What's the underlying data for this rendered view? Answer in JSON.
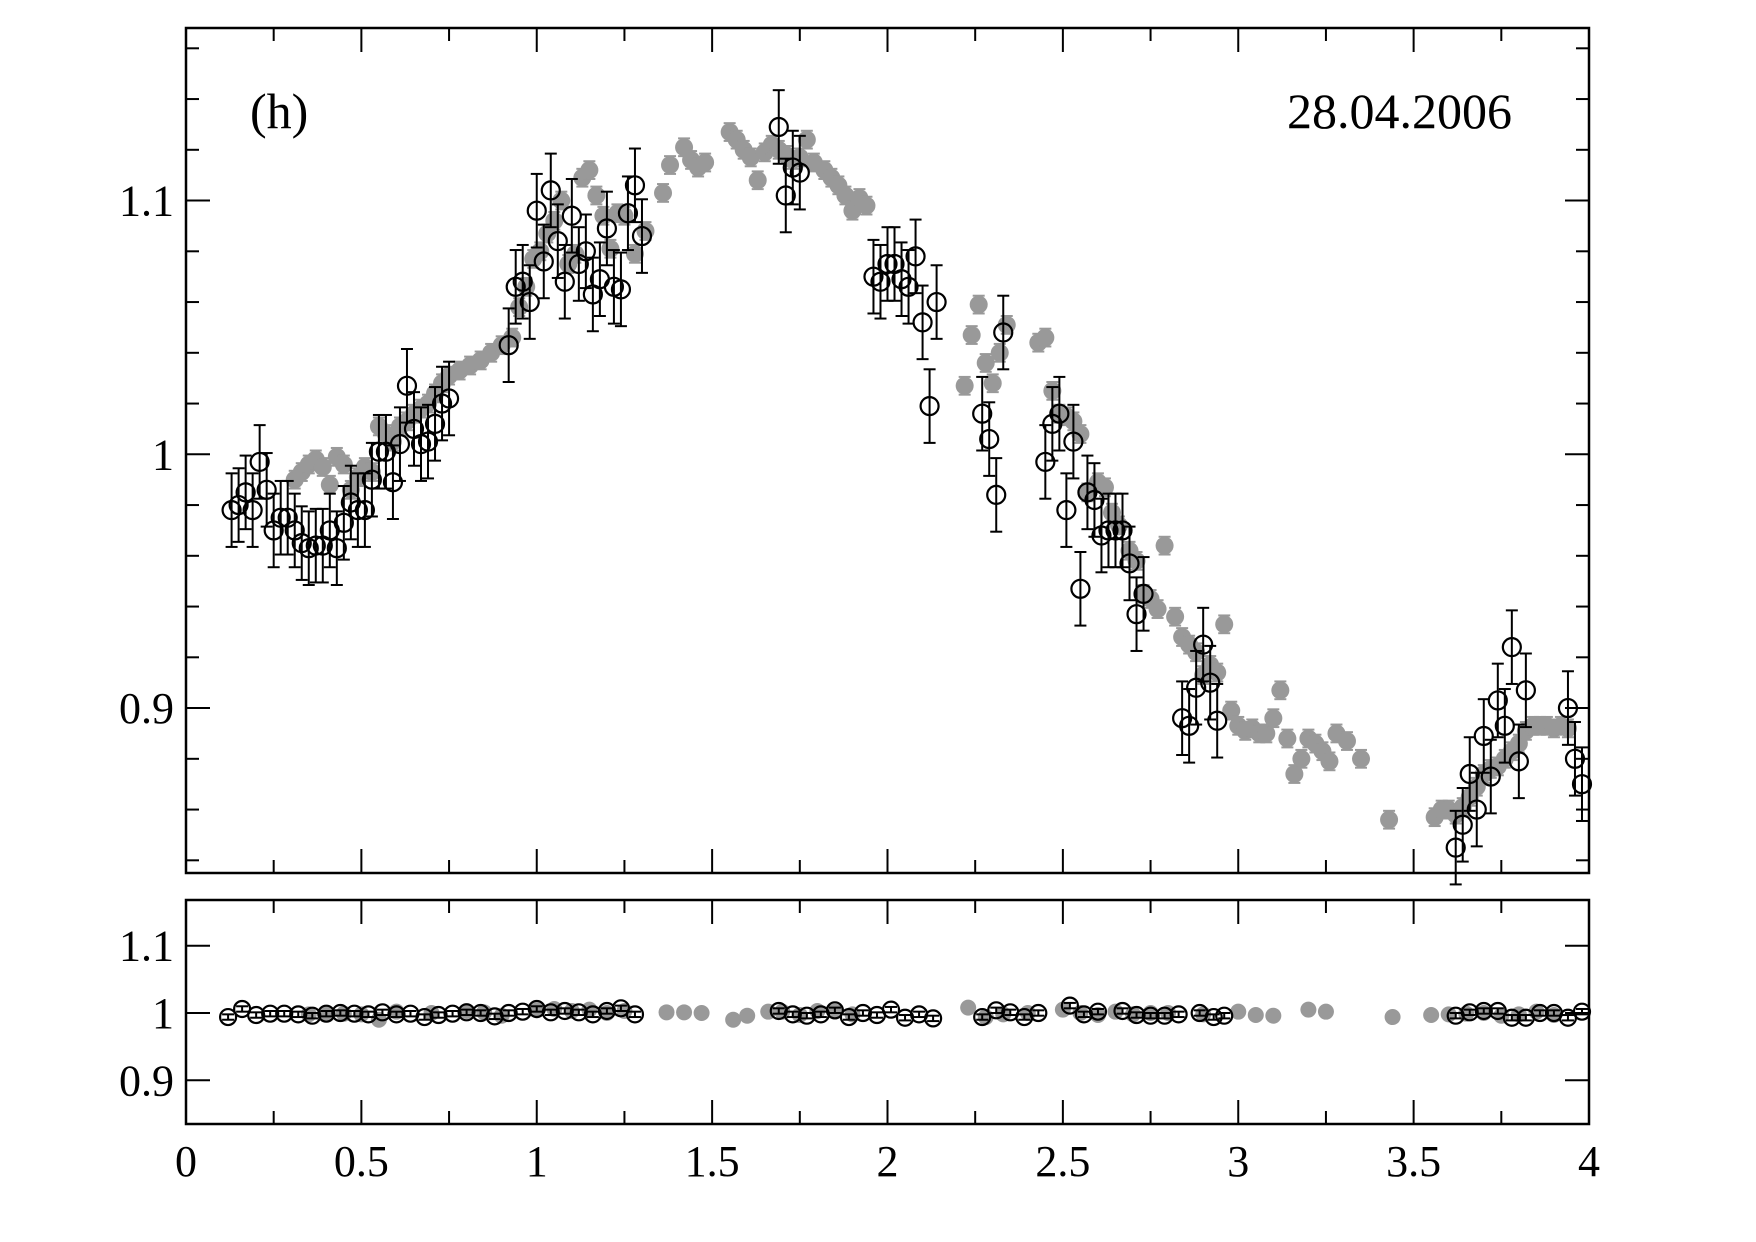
{
  "chart_data": [
    {
      "type": "scatter",
      "panel_label": "(h)",
      "date": "28.04.2006",
      "xlabel": "",
      "ylabel": "",
      "xlim": [
        0,
        4
      ],
      "ylim": [
        0.835,
        1.168
      ],
      "xticks": [
        0,
        0.5,
        1,
        1.5,
        2,
        2.5,
        3,
        3.5,
        4
      ],
      "yticks": [
        0.9,
        1,
        1.1
      ],
      "ytick_labels": [
        "0.9",
        "1",
        "1.1"
      ],
      "grid": false,
      "series": [
        {
          "style": "filled-gray-circles",
          "color": "#999999",
          "x": [
            0.31,
            0.33,
            0.35,
            0.37,
            0.39,
            0.41,
            0.43,
            0.45,
            0.47,
            0.49,
            0.51,
            0.53,
            0.55,
            0.57,
            0.59,
            0.61,
            0.63,
            0.65,
            0.67,
            0.69,
            0.71,
            0.73,
            0.75,
            0.78,
            0.81,
            0.84,
            0.87,
            0.9,
            0.93,
            0.95,
            0.97,
            0.99,
            1.01,
            1.03,
            1.05,
            1.07,
            1.09,
            1.11,
            1.13,
            1.15,
            1.17,
            1.19,
            1.21,
            1.23,
            1.25,
            1.28,
            1.31,
            1.36,
            1.38,
            1.42,
            1.44,
            1.46,
            1.48,
            1.55,
            1.57,
            1.59,
            1.61,
            1.63,
            1.65,
            1.67,
            1.69,
            1.71,
            1.73,
            1.75,
            1.77,
            1.79,
            1.82,
            1.84,
            1.86,
            1.88,
            1.9,
            1.92,
            1.94,
            2.22,
            2.24,
            2.26,
            2.28,
            2.3,
            2.32,
            2.34,
            2.43,
            2.45,
            2.47,
            2.49,
            2.51,
            2.53,
            2.55,
            2.57,
            2.6,
            2.62,
            2.64,
            2.66,
            2.69,
            2.71,
            2.73,
            2.75,
            2.77,
            2.79,
            2.82,
            2.84,
            2.86,
            2.88,
            2.9,
            2.92,
            2.94,
            2.96,
            2.98,
            3.0,
            3.02,
            3.04,
            3.06,
            3.08,
            3.1,
            3.12,
            3.14,
            3.16,
            3.18,
            3.2,
            3.22,
            3.24,
            3.26,
            3.28,
            3.31,
            3.35,
            3.43,
            3.56,
            3.58,
            3.6,
            3.62,
            3.64,
            3.66,
            3.68,
            3.7,
            3.72,
            3.74,
            3.76,
            3.78,
            3.8,
            3.82,
            3.84,
            3.86,
            3.88,
            3.9,
            3.92,
            3.94
          ],
          "y": [
            0.99,
            0.993,
            0.996,
            0.998,
            0.995,
            0.988,
            0.999,
            0.996,
            0.986,
            0.991,
            0.995,
            0.993,
            1.011,
            1.008,
            1.005,
            1.011,
            1.013,
            1.016,
            1.018,
            1.02,
            1.024,
            1.028,
            1.031,
            1.033,
            1.035,
            1.037,
            1.04,
            1.043,
            1.046,
            1.058,
            1.066,
            1.077,
            1.08,
            1.087,
            1.092,
            1.1,
            1.075,
            1.079,
            1.109,
            1.112,
            1.102,
            1.094,
            1.081,
            1.095,
            1.094,
            1.079,
            1.088,
            1.103,
            1.114,
            1.121,
            1.116,
            1.113,
            1.115,
            1.127,
            1.124,
            1.12,
            1.117,
            1.108,
            1.119,
            1.122,
            1.12,
            1.118,
            1.116,
            1.117,
            1.124,
            1.115,
            1.112,
            1.109,
            1.106,
            1.102,
            1.096,
            1.101,
            1.098,
            1.027,
            1.047,
            1.059,
            1.036,
            1.028,
            1.04,
            1.051,
            1.044,
            1.046,
            1.025,
            1.016,
            1.015,
            1.013,
            1.008,
            0.985,
            0.989,
            0.987,
            0.977,
            0.972,
            0.962,
            0.958,
            0.945,
            0.943,
            0.939,
            0.964,
            0.936,
            0.928,
            0.925,
            0.922,
            0.913,
            0.917,
            0.914,
            0.933,
            0.899,
            0.893,
            0.891,
            0.892,
            0.89,
            0.89,
            0.896,
            0.907,
            0.888,
            0.874,
            0.88,
            0.888,
            0.886,
            0.883,
            0.879,
            0.89,
            0.887,
            0.88,
            0.856,
            0.857,
            0.86,
            0.86,
            0.858,
            0.861,
            0.865,
            0.869,
            0.874,
            0.876,
            0.877,
            0.88,
            0.883,
            0.886,
            0.891,
            0.893,
            0.893,
            0.893,
            0.892,
            0.893,
            0.892
          ]
        },
        {
          "style": "open-black-circles",
          "color": "#000000",
          "x": [
            0.13,
            0.15,
            0.17,
            0.19,
            0.21,
            0.23,
            0.25,
            0.27,
            0.29,
            0.31,
            0.33,
            0.35,
            0.37,
            0.39,
            0.41,
            0.43,
            0.45,
            0.47,
            0.49,
            0.51,
            0.53,
            0.55,
            0.57,
            0.59,
            0.61,
            0.63,
            0.65,
            0.67,
            0.69,
            0.71,
            0.73,
            0.75,
            0.92,
            0.94,
            0.96,
            0.98,
            1.0,
            1.02,
            1.04,
            1.06,
            1.08,
            1.1,
            1.12,
            1.14,
            1.16,
            1.18,
            1.2,
            1.22,
            1.24,
            1.26,
            1.28,
            1.3,
            1.69,
            1.71,
            1.73,
            1.75,
            1.96,
            1.98,
            2.0,
            2.02,
            2.04,
            2.06,
            2.08,
            2.1,
            2.12,
            2.14,
            2.27,
            2.29,
            2.31,
            2.33,
            2.45,
            2.47,
            2.49,
            2.51,
            2.53,
            2.55,
            2.57,
            2.59,
            2.61,
            2.63,
            2.65,
            2.67,
            2.69,
            2.71,
            2.73,
            2.84,
            2.86,
            2.88,
            2.9,
            2.92,
            2.94,
            3.62,
            3.64,
            3.66,
            3.68,
            3.7,
            3.72,
            3.74,
            3.76,
            3.78,
            3.8,
            3.82,
            3.94,
            3.96,
            3.98
          ],
          "y": [
            0.978,
            0.98,
            0.985,
            0.978,
            0.997,
            0.986,
            0.97,
            0.975,
            0.975,
            0.97,
            0.965,
            0.963,
            0.964,
            0.964,
            0.97,
            0.963,
            0.973,
            0.981,
            0.978,
            0.978,
            0.99,
            1.001,
            1.001,
            0.989,
            1.004,
            1.027,
            1.01,
            1.004,
            1.005,
            1.012,
            1.02,
            1.022,
            1.043,
            1.066,
            1.068,
            1.06,
            1.096,
            1.076,
            1.104,
            1.084,
            1.068,
            1.094,
            1.075,
            1.08,
            1.063,
            1.069,
            1.089,
            1.066,
            1.065,
            1.095,
            1.106,
            1.086,
            1.129,
            1.102,
            1.113,
            1.111,
            1.07,
            1.068,
            1.075,
            1.075,
            1.069,
            1.066,
            1.078,
            1.052,
            1.019,
            1.06,
            1.016,
            1.006,
            0.984,
            1.048,
            0.997,
            1.012,
            1.016,
            0.978,
            1.005,
            0.947,
            0.985,
            0.982,
            0.968,
            0.97,
            0.97,
            0.97,
            0.957,
            0.937,
            0.945,
            0.896,
            0.893,
            0.908,
            0.925,
            0.91,
            0.895,
            0.845,
            0.854,
            0.874,
            0.86,
            0.889,
            0.873,
            0.903,
            0.893,
            0.924,
            0.879,
            0.907,
            0.9,
            0.88,
            0.87
          ]
        }
      ]
    },
    {
      "type": "scatter",
      "xlim": [
        0,
        4
      ],
      "ylim": [
        0.835,
        1.168
      ],
      "xticks": [
        0,
        0.5,
        1,
        1.5,
        2,
        2.5,
        3,
        3.5,
        4
      ],
      "xtick_labels": [
        "0",
        "0.5",
        "1",
        "1.5",
        "2",
        "2.5",
        "3",
        "3.5",
        "4"
      ],
      "yticks": [
        0.9,
        1,
        1.1
      ],
      "ytick_labels": [
        "0.9",
        "1",
        "1.1"
      ],
      "grid": false,
      "series": [
        {
          "style": "filled-gray-circles",
          "color": "#999999",
          "x": [
            0.35,
            0.4,
            0.45,
            0.5,
            0.55,
            0.6,
            0.7,
            0.8,
            0.85,
            0.9,
            1.0,
            1.05,
            1.1,
            1.15,
            1.2,
            1.25,
            1.37,
            1.42,
            1.47,
            1.56,
            1.6,
            1.66,
            1.7,
            1.75,
            1.8,
            1.85,
            1.9,
            2.23,
            2.28,
            2.33,
            2.4,
            2.5,
            2.55,
            2.6,
            2.65,
            2.7,
            2.75,
            2.8,
            2.9,
            3.0,
            3.05,
            3.1,
            3.2,
            3.25,
            3.44,
            3.55,
            3.6,
            3.65,
            3.7,
            3.75,
            3.8,
            3.85,
            3.9
          ],
          "y": [
            0.998,
            1.0,
            0.999,
            0.998,
            0.99,
            1.002,
            1.0,
            1.003,
            1.001,
            0.996,
            1.004,
            1.006,
            1.003,
            1.005,
            1.0,
            1.003,
            1.001,
            1.001,
            1.0,
            0.99,
            0.996,
            1.002,
            1.002,
            0.997,
            1.003,
            1.002,
            0.998,
            1.008,
            0.994,
            0.998,
            1.0,
            1.005,
            1.0,
            0.997,
            1.002,
            0.998,
            1.0,
            1.0,
            0.998,
            1.002,
            0.997,
            0.996,
            1.005,
            1.002,
            0.994,
            0.997,
            0.998,
            0.999,
            1.0,
            0.996,
            0.998,
            1.002,
            0.997
          ]
        },
        {
          "style": "open-black-circles",
          "color": "#000000",
          "x": [
            0.12,
            0.16,
            0.2,
            0.24,
            0.28,
            0.32,
            0.36,
            0.4,
            0.44,
            0.48,
            0.52,
            0.56,
            0.6,
            0.64,
            0.68,
            0.72,
            0.76,
            0.8,
            0.84,
            0.88,
            0.92,
            0.96,
            1.0,
            1.04,
            1.08,
            1.12,
            1.16,
            1.2,
            1.24,
            1.28,
            1.69,
            1.73,
            1.77,
            1.81,
            1.85,
            1.89,
            1.93,
            1.97,
            2.01,
            2.05,
            2.09,
            2.13,
            2.27,
            2.31,
            2.35,
            2.39,
            2.43,
            2.52,
            2.56,
            2.6,
            2.67,
            2.71,
            2.75,
            2.79,
            2.83,
            2.89,
            2.93,
            2.96,
            3.62,
            3.66,
            3.7,
            3.74,
            3.78,
            3.82,
            3.86,
            3.9,
            3.94,
            3.98
          ],
          "y": [
            0.994,
            1.006,
            0.997,
            0.999,
            0.999,
            0.998,
            0.996,
            0.999,
            1.0,
            0.999,
            0.998,
            1.001,
            0.998,
            0.999,
            0.994,
            0.997,
            0.999,
            1.001,
            1.0,
            0.995,
            1.0,
            1.002,
            1.006,
            1.001,
            1.003,
            1.001,
            0.998,
            1.003,
            1.007,
            0.998,
            1.003,
            0.998,
            0.996,
            0.998,
            1.004,
            0.994,
            1.0,
            0.997,
            1.005,
            0.993,
            0.998,
            0.992,
            0.994,
            1.004,
            1.001,
            0.994,
            1.0,
            1.011,
            0.998,
            1.002,
            1.003,
            0.997,
            0.996,
            0.996,
            0.998,
            1.0,
            0.994,
            0.996,
            0.996,
            1.001,
            1.003,
            1.003,
            0.993,
            0.993,
            1.0,
            1.0,
            0.993,
            1.002
          ]
        }
      ]
    }
  ]
}
